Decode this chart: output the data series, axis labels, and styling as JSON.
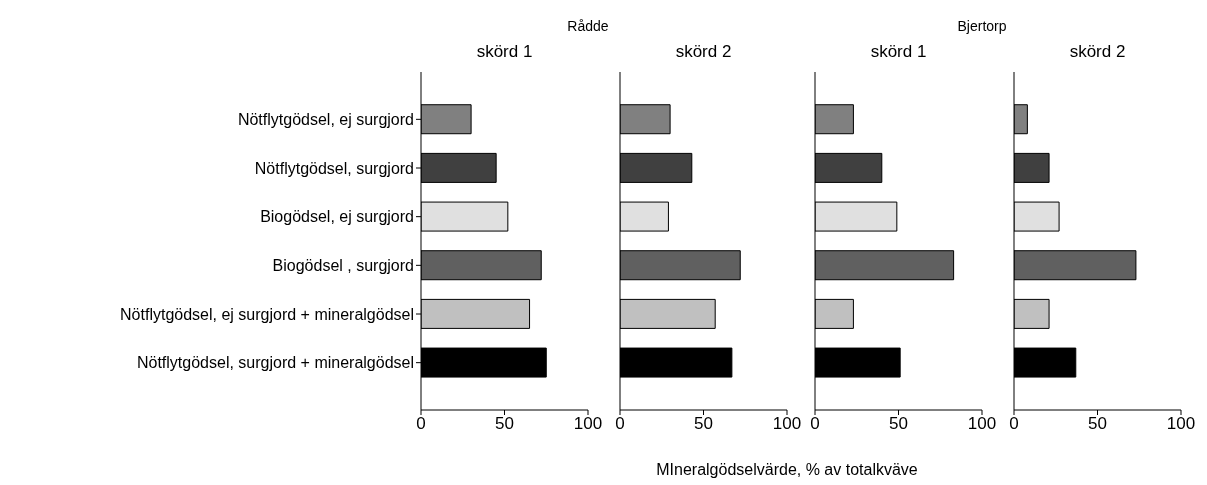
{
  "chart_data": [
    {
      "type": "bar",
      "orientation": "horizontal",
      "title": "skörd 1",
      "annotations": [
        "Rådde"
      ],
      "categories": [
        "Nötflytgödsel, ej surgjord",
        "Nötflytgödsel, surgjord",
        "Biogödsel, ej surgjord",
        "Biogödsel , surgjord",
        "Nötflytgödsel, ej surgjord + mineralgödsel",
        "Nötflytgödsel, surgjord + mineralgödsel"
      ],
      "values": [
        30,
        45,
        52,
        72,
        65,
        75
      ],
      "colors": [
        "#808080",
        "#404040",
        "#e0e0e0",
        "#606060",
        "#c0c0c0",
        "#000000"
      ],
      "xlim": [
        0,
        100
      ],
      "xticks": [
        0,
        50,
        100
      ]
    },
    {
      "type": "bar",
      "orientation": "horizontal",
      "title": "skörd 2",
      "xlabel": "MIneralgödselvärde, % av totalkväve",
      "categories": [
        null,
        null,
        null,
        null,
        null,
        null
      ],
      "values": [
        30,
        43,
        29,
        72,
        57,
        67
      ],
      "colors": [
        "#808080",
        "#404040",
        "#e0e0e0",
        "#606060",
        "#c0c0c0",
        "#000000"
      ],
      "xlim": [
        0,
        100
      ],
      "xticks": [
        0,
        50,
        100
      ],
      "tick_labels": "x"
    },
    {
      "type": "bar",
      "orientation": "horizontal",
      "title": "skörd 1",
      "annotations": [
        "Bjertorp"
      ],
      "categories": [
        null,
        null,
        null,
        null,
        null,
        null
      ],
      "values": [
        23,
        40,
        49,
        83,
        23,
        51
      ],
      "colors": [
        "#808080",
        "#404040",
        "#e0e0e0",
        "#606060",
        "#c0c0c0",
        "#000000"
      ],
      "xlim": [
        0,
        100
      ],
      "xticks": [
        0,
        50,
        100
      ],
      "tick_labels": "x"
    },
    {
      "type": "bar",
      "orientation": "horizontal",
      "title": "skörd 2",
      "categories": [
        null,
        null,
        null,
        null,
        null,
        null
      ],
      "values": [
        8,
        21,
        27,
        73,
        21,
        37
      ],
      "colors": [
        "#808080",
        "#404040",
        "#e0e0e0",
        "#606060",
        "#c0c0c0",
        "#000000"
      ],
      "xlim": [
        0,
        100
      ],
      "xticks": [
        0,
        50,
        100
      ],
      "tick_labels": "x"
    }
  ]
}
